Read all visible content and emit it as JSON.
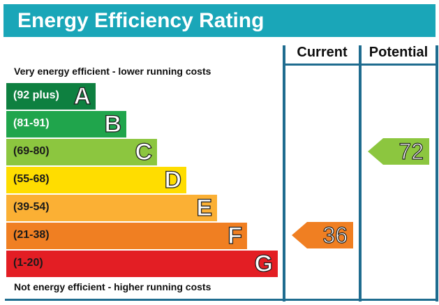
{
  "title": "Energy Efficiency Rating",
  "columns": {
    "current": "Current",
    "potential": "Potential"
  },
  "top_note": "Very energy efficient - lower running costs",
  "bottom_note": "Not energy efficient - higher running costs",
  "bands": [
    {
      "range": "(92 plus)",
      "letter": "A",
      "color": "#0e8040",
      "text_color": "#ffffff"
    },
    {
      "range": "(81-91)",
      "letter": "B",
      "color": "#20a54c",
      "text_color": "#ffffff"
    },
    {
      "range": "(69-80)",
      "letter": "C",
      "color": "#8cc63f",
      "text_color": "#1a1a1a"
    },
    {
      "range": "(55-68)",
      "letter": "D",
      "color": "#ffdd00",
      "text_color": "#1a1a1a"
    },
    {
      "range": "(39-54)",
      "letter": "E",
      "color": "#fbb034",
      "text_color": "#1a1a1a"
    },
    {
      "range": "(21-38)",
      "letter": "F",
      "color": "#f07f22",
      "text_color": "#1a1a1a"
    },
    {
      "range": "(1-20)",
      "letter": "G",
      "color": "#e31e24",
      "text_color": "#1a1a1a"
    }
  ],
  "ratings": {
    "current": {
      "value": "36",
      "band": "F",
      "color": "#f07f22"
    },
    "potential": {
      "value": "72",
      "band": "C",
      "color": "#8cc63f"
    }
  }
}
